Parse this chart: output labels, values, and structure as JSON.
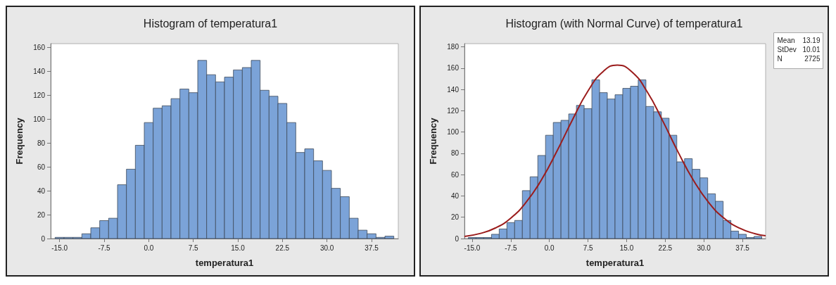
{
  "chart_data": [
    {
      "type": "histogram",
      "title": "Histogram of temperatura1",
      "xlabel": "temperatura1",
      "ylabel": "Frequency",
      "bins": [
        -15.75,
        -14.25,
        -12.75,
        -11.25,
        -9.75,
        -8.25,
        -6.75,
        -5.25,
        -3.75,
        -2.25,
        -0.75,
        0.75,
        2.25,
        3.75,
        5.25,
        6.75,
        8.25,
        9.75,
        11.25,
        12.75,
        14.25,
        15.75,
        17.25,
        18.75,
        20.25,
        21.75,
        23.25,
        24.75,
        26.25,
        27.75,
        29.25,
        30.75,
        32.25,
        33.75,
        35.25,
        36.75,
        38.25,
        39.75,
        41.25
      ],
      "series": [
        {
          "color": "#7ba3d8",
          "values": [
            1,
            1,
            1,
            4,
            9,
            15,
            17,
            45,
            58,
            78,
            97,
            109,
            111,
            117,
            125,
            122,
            149,
            137,
            131,
            135,
            141,
            143,
            149,
            124,
            119,
            113,
            97,
            72,
            75,
            65,
            57,
            42,
            35,
            17,
            7,
            4,
            1,
            2
          ]
        }
      ],
      "xlim": [
        -16.5,
        42
      ],
      "ylim": [
        0,
        163
      ],
      "xticks": [
        {
          "value": -15,
          "label": "-15.0"
        },
        -7.5,
        {
          "value": 0,
          "label": "0.0"
        },
        7.5,
        {
          "value": 15,
          "label": "15.0"
        },
        22.5,
        {
          "value": 30,
          "label": "30.0"
        },
        37.5
      ],
      "yticks": [
        0,
        20,
        40,
        60,
        80,
        100,
        120,
        140,
        160
      ],
      "grid": false
    },
    {
      "type": "histogram",
      "title": "Histogram (with Normal Curve) of temperatura1",
      "xlabel": "temperatura1",
      "ylabel": "Frequency",
      "bins": [
        -15.75,
        -14.25,
        -12.75,
        -11.25,
        -9.75,
        -8.25,
        -6.75,
        -5.25,
        -3.75,
        -2.25,
        -0.75,
        0.75,
        2.25,
        3.75,
        5.25,
        6.75,
        8.25,
        9.75,
        11.25,
        12.75,
        14.25,
        15.75,
        17.25,
        18.75,
        20.25,
        21.75,
        23.25,
        24.75,
        26.25,
        27.75,
        29.25,
        30.75,
        32.25,
        33.75,
        35.25,
        36.75,
        38.25,
        39.75,
        41.25
      ],
      "series": [
        {
          "color": "#7ba3d8",
          "values": [
            1,
            1,
            1,
            4,
            9,
            15,
            17,
            45,
            58,
            78,
            97,
            109,
            111,
            117,
            125,
            122,
            149,
            137,
            131,
            135,
            141,
            143,
            149,
            124,
            119,
            113,
            97,
            72,
            75,
            65,
            57,
            42,
            35,
            17,
            7,
            4,
            1,
            2
          ]
        },
        {
          "type": "line",
          "color": "#9b1c1c",
          "x": [
            -16.5,
            -13.5,
            -10.5,
            -7.5,
            -4.5,
            -1.5,
            1.5,
            4.5,
            7.5,
            10.5,
            13.19,
            16,
            19,
            22,
            25,
            28,
            31,
            34,
            37,
            40,
            42
          ],
          "values": [
            2,
            4.7,
            9.9,
            19.2,
            34.2,
            55.5,
            82.4,
            111.7,
            138.6,
            157.1,
            162.9,
            156.6,
            137.7,
            110.6,
            81.2,
            54.5,
            33.5,
            18.8,
            9.6,
            4.5,
            2.6
          ]
        }
      ],
      "xlim": [
        -16.5,
        42
      ],
      "ylim": [
        0,
        183
      ],
      "xticks": [
        {
          "value": -15,
          "label": "-15.0"
        },
        -7.5,
        {
          "value": 0,
          "label": "0.0"
        },
        7.5,
        {
          "value": 15,
          "label": "15.0"
        },
        22.5,
        {
          "value": 30,
          "label": "30.0"
        },
        37.5
      ],
      "yticks": [
        0,
        20,
        40,
        60,
        80,
        100,
        120,
        140,
        160,
        180
      ],
      "annotations": [
        "Mean 13.19",
        "StDev 10.01",
        "N 2725"
      ],
      "grid": false,
      "marker": "none"
    }
  ]
}
